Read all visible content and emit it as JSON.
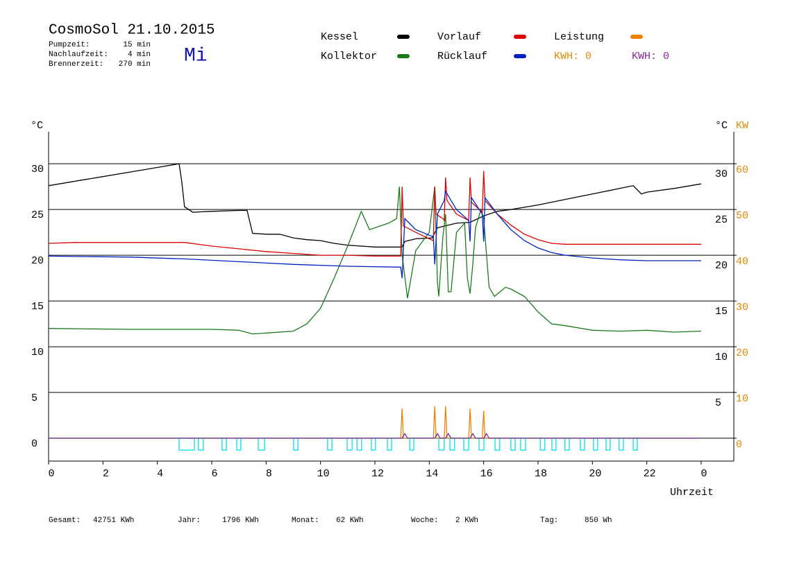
{
  "chart_data": {
    "type": "line",
    "title": "CosmoSol 21.10.2015",
    "info": [
      {
        "label": "Pumpzeit:",
        "value": "15 min"
      },
      {
        "label": "Nachlaufzeit:",
        "value": "4 min"
      },
      {
        "label": "Brennerzeit:",
        "value": "270 min"
      }
    ],
    "weekday": "Mi",
    "y_label": "°C",
    "y_right_label": "°C",
    "y2_label": "KW",
    "x_label": "Uhrzeit",
    "kwh_labels": [
      {
        "text": "KWH: 0",
        "color": "#e08a00"
      },
      {
        "text": "KWH: 0",
        "color": "#8a2a9a"
      }
    ],
    "xlim": [
      0,
      24
    ],
    "xticks": [
      0,
      2,
      4,
      6,
      8,
      10,
      12,
      14,
      16,
      18,
      20,
      22,
      {
        "value": 24,
        "label": "0"
      }
    ],
    "ylim": [
      -2.5,
      33.5
    ],
    "yticks": [
      0,
      5,
      10,
      15,
      20,
      25,
      30
    ],
    "y2lim": [
      -5,
      67
    ],
    "y2ticks": [
      0,
      10,
      20,
      30,
      40,
      50,
      60
    ],
    "grid": true,
    "series": [
      {
        "name": "Kessel",
        "color": "#000000",
        "x": [
          0,
          1,
          2,
          3,
          4,
          4.8,
          4.9,
          5.0,
          5.3,
          6,
          7,
          7.3,
          7.5,
          8,
          8.5,
          9,
          9.5,
          10,
          10.5,
          11,
          12,
          13,
          13.1,
          13.5,
          14.1,
          14.3,
          15,
          15.5,
          16,
          16.5,
          17,
          18,
          19,
          20,
          21,
          21.5,
          21.8,
          22,
          23,
          24
        ],
        "values": [
          27.6,
          28.1,
          28.6,
          29.1,
          29.6,
          30.0,
          28,
          25.3,
          24.7,
          24.8,
          24.9,
          24.9,
          22.4,
          22.3,
          22.3,
          21.9,
          21.7,
          21.6,
          21.3,
          21.1,
          20.9,
          20.9,
          21.5,
          21.8,
          21.9,
          23.0,
          23.5,
          23.6,
          24.3,
          24.8,
          25.0,
          25.5,
          26.1,
          26.7,
          27.3,
          27.6,
          26.7,
          26.9,
          27.3,
          27.8
        ]
      },
      {
        "name": "Kollektor",
        "color": "#1a7a1a",
        "x": [
          0,
          3,
          6,
          7,
          7.5,
          8,
          9,
          9.5,
          10,
          10.5,
          11,
          11.5,
          11.8,
          12,
          12.5,
          12.8,
          12.9,
          13.0,
          13.2,
          13.5,
          14,
          14.2,
          14.3,
          14.35,
          14.5,
          14.6,
          14.7,
          14.8,
          15,
          15.3,
          15.4,
          15.5,
          15.6,
          15.7,
          15.9,
          16.0,
          16.2,
          16.4,
          16.8,
          17,
          17.5,
          18,
          18.5,
          19,
          20,
          21,
          22,
          23,
          24
        ],
        "values": [
          12,
          11.9,
          11.9,
          11.8,
          11.4,
          11.5,
          11.7,
          12.5,
          14.2,
          17.5,
          21,
          24.8,
          22.8,
          23,
          23.5,
          24,
          27.5,
          20,
          15.3,
          20.5,
          22.5,
          27.5,
          17,
          15.5,
          22,
          24.5,
          16,
          16,
          22.5,
          23.5,
          17.5,
          15.8,
          19,
          23,
          25,
          24,
          16.5,
          15.5,
          16.5,
          16.3,
          15.5,
          13.8,
          12.5,
          12.3,
          11.8,
          11.7,
          11.8,
          11.6,
          11.7
        ]
      },
      {
        "name": "Vorlauf",
        "color": "#e00000",
        "x": [
          0,
          1,
          3,
          5,
          6,
          7,
          8,
          9,
          10,
          11,
          12,
          12.95,
          13.0,
          13.05,
          13.5,
          14.0,
          14.15,
          14.2,
          14.25,
          14.5,
          14.55,
          14.6,
          14.65,
          15.0,
          15.45,
          15.5,
          15.55,
          15.95,
          16.0,
          16.05,
          16.5,
          17,
          17.5,
          18,
          18.5,
          19,
          20,
          22,
          24
        ],
        "values": [
          21.3,
          21.4,
          21.4,
          21.4,
          21.0,
          20.7,
          20.4,
          20.2,
          20.0,
          20.0,
          19.9,
          19.9,
          27.5,
          23.2,
          22.5,
          21.8,
          21.6,
          27.5,
          24.5,
          24,
          23.8,
          28.5,
          26,
          24.5,
          23.8,
          28.5,
          25.8,
          24.7,
          29.2,
          26,
          24.5,
          23.3,
          22.3,
          21.7,
          21.3,
          21.2,
          21.2,
          21.2,
          21.2
        ]
      },
      {
        "name": "Rücklauf",
        "color": "#0020c0",
        "x": [
          0,
          3,
          5,
          7,
          9,
          11,
          12.95,
          13.0,
          13.1,
          13.5,
          14.15,
          14.2,
          14.3,
          14.55,
          14.6,
          15.0,
          15.45,
          15.5,
          15.55,
          15.95,
          16.0,
          16.05,
          16.5,
          17,
          17.5,
          18,
          18.5,
          19,
          20,
          21,
          22,
          24
        ],
        "values": [
          19.9,
          19.8,
          19.6,
          19.3,
          19.0,
          18.8,
          18.7,
          17.5,
          24.0,
          22.8,
          22.0,
          19.0,
          24.5,
          26.0,
          27.0,
          25.0,
          23.8,
          21.5,
          26.3,
          24.5,
          21.5,
          26.3,
          24.5,
          22.8,
          21.6,
          20.8,
          20.3,
          20.0,
          19.7,
          19.5,
          19.4,
          19.4
        ]
      },
      {
        "name": "Leistung",
        "color": "#f08000",
        "axis": "y2",
        "x": [
          0,
          12.95,
          13.0,
          13.05,
          14.15,
          14.2,
          14.25,
          14.55,
          14.6,
          14.65,
          15.45,
          15.5,
          15.55,
          15.95,
          16.0,
          16.05,
          24
        ],
        "values": [
          0,
          0,
          6.5,
          0,
          0,
          7,
          0,
          0,
          7,
          0,
          0,
          6.5,
          0,
          0,
          6,
          0,
          0
        ]
      },
      {
        "color": "#8a2a9a",
        "axis": "y2",
        "x": [
          0,
          13.0,
          13.1,
          13.2,
          14.2,
          14.3,
          14.4,
          14.6,
          14.7,
          14.8,
          15.5,
          15.6,
          15.7,
          16.0,
          16.1,
          16.2,
          24
        ],
        "values": [
          0,
          0,
          1,
          0,
          0,
          1,
          0,
          0,
          1,
          0,
          0,
          1,
          0,
          0,
          1,
          0,
          0
        ]
      }
    ],
    "pump": {
      "color": "#00e0e8",
      "level": -1.3,
      "intervals": [
        [
          4.8,
          5.36
        ],
        [
          5.51,
          5.69
        ],
        [
          6.38,
          6.54
        ],
        [
          6.92,
          7.07
        ],
        [
          7.71,
          7.94
        ],
        [
          9.01,
          9.17
        ],
        [
          10.26,
          10.42
        ],
        [
          10.98,
          11.16
        ],
        [
          11.34,
          11.51
        ],
        [
          11.87,
          12.02
        ],
        [
          12.46,
          12.61
        ],
        [
          13.28,
          13.43
        ],
        [
          14.35,
          14.55
        ],
        [
          14.76,
          14.93
        ],
        [
          15.27,
          15.45
        ],
        [
          15.83,
          16.01
        ],
        [
          16.42,
          16.59
        ],
        [
          17.0,
          17.16
        ],
        [
          17.36,
          17.54
        ],
        [
          18.08,
          18.25
        ],
        [
          18.51,
          18.66
        ],
        [
          18.99,
          19.15
        ],
        [
          19.56,
          19.71
        ],
        [
          20.04,
          20.19
        ],
        [
          20.5,
          20.65
        ],
        [
          20.98,
          21.14
        ],
        [
          21.5,
          21.65
        ]
      ]
    },
    "totals": [
      {
        "label": "Gesamt:",
        "value": "42751 KWh"
      },
      {
        "label": "Jahr:",
        "value": "1796 KWh"
      },
      {
        "label": "Monat:",
        "value": "62 KWh"
      },
      {
        "label": "Woche:",
        "value": "2 KWh"
      },
      {
        "label": "Tag:",
        "value": "850 Wh"
      }
    ]
  }
}
